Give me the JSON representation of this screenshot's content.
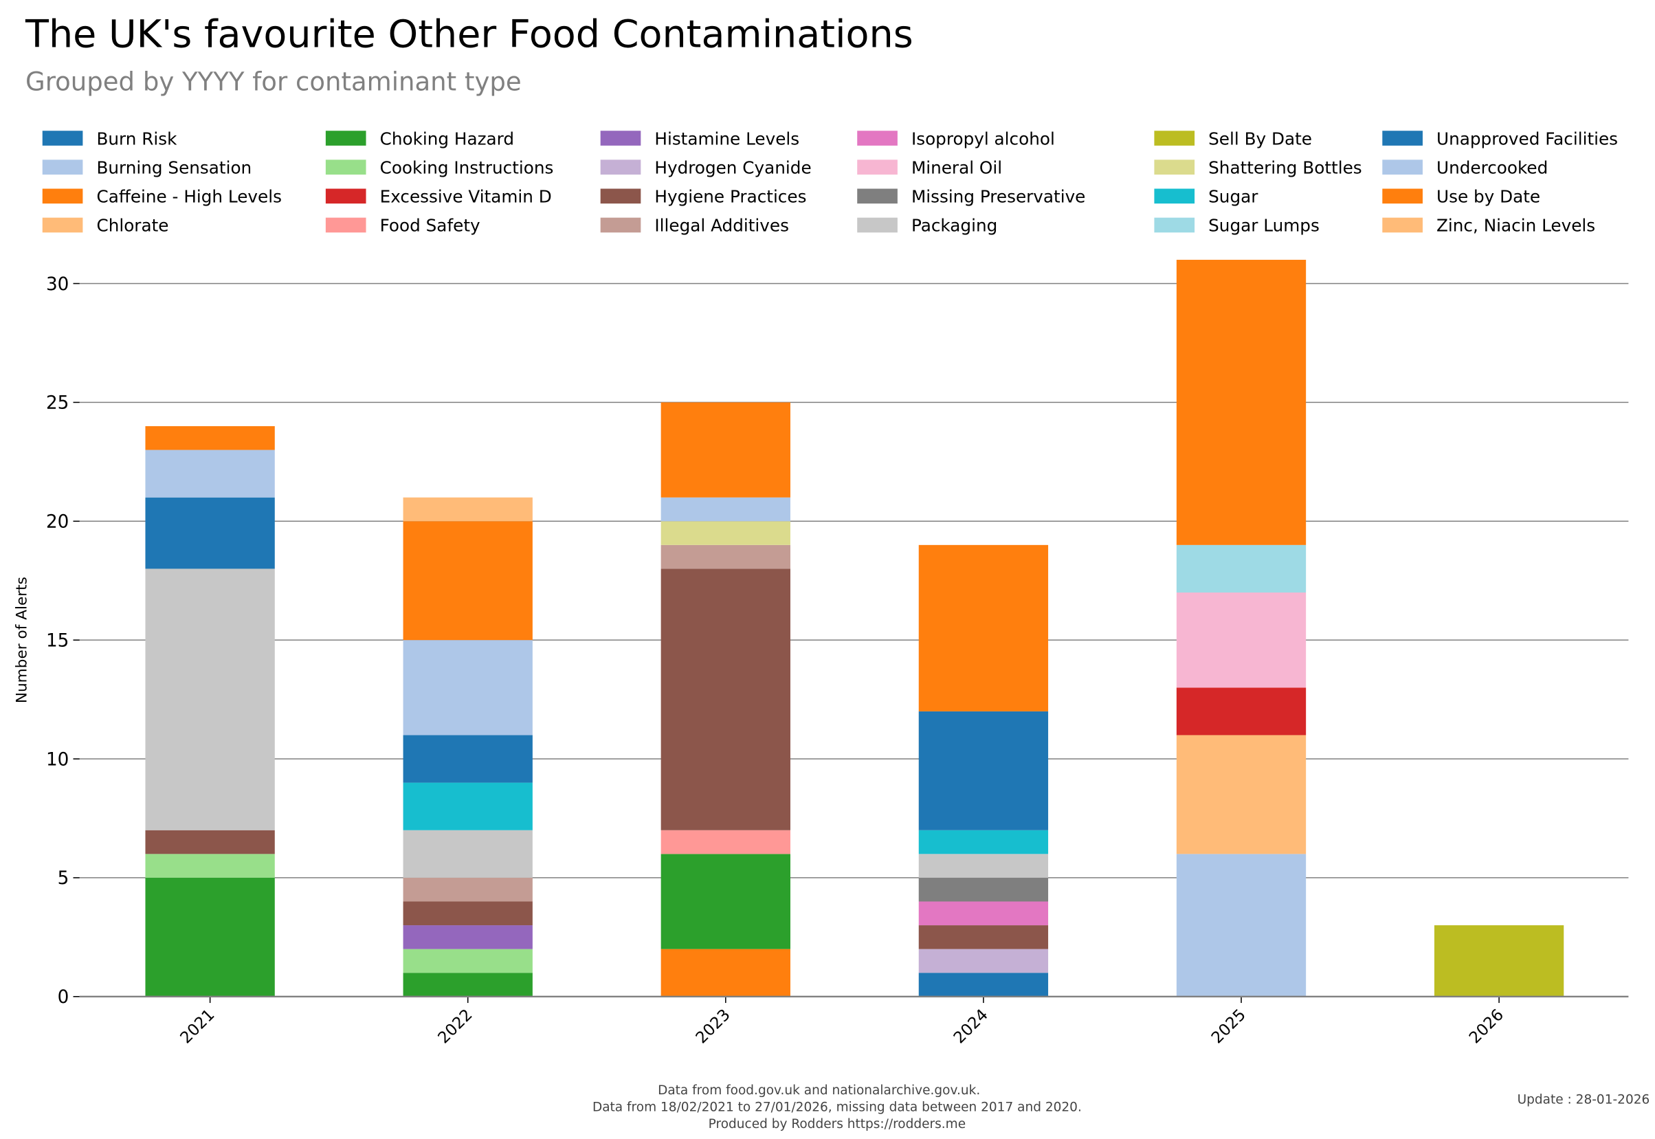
{
  "chart_data": {
    "type": "bar",
    "stacked": true,
    "title": "The UK's favourite Other Food Contaminations",
    "subtitle": "Grouped by YYYY for contaminant type",
    "xlabel": "",
    "ylabel": "Number of Alerts",
    "ylim": [
      0,
      31
    ],
    "yticks": [
      0,
      5,
      10,
      15,
      20,
      25,
      30
    ],
    "grid": "horizontal",
    "legend_position": "top",
    "categories": [
      "2021",
      "2022",
      "2023",
      "2024",
      "2025",
      "2026"
    ],
    "series": [
      {
        "name": "Burn Risk",
        "color": "#1f77b4",
        "values": [
          0,
          0,
          0,
          1,
          0,
          0
        ]
      },
      {
        "name": "Burning Sensation",
        "color": "#aec7e8",
        "values": [
          0,
          0,
          0,
          0,
          6,
          0
        ]
      },
      {
        "name": "Caffeine - High Levels",
        "color": "#ff7f0e",
        "values": [
          0,
          0,
          2,
          0,
          0,
          0
        ]
      },
      {
        "name": "Chlorate",
        "color": "#ffbb78",
        "values": [
          0,
          0,
          0,
          0,
          5,
          0
        ]
      },
      {
        "name": "Choking Hazard",
        "color": "#2ca02c",
        "values": [
          5,
          1,
          4,
          0,
          0,
          0
        ]
      },
      {
        "name": "Cooking Instructions",
        "color": "#98df8a",
        "values": [
          1,
          1,
          0,
          0,
          0,
          0
        ]
      },
      {
        "name": "Excessive Vitamin D",
        "color": "#d62728",
        "values": [
          0,
          0,
          0,
          0,
          2,
          0
        ]
      },
      {
        "name": "Food Safety",
        "color": "#ff9896",
        "values": [
          0,
          0,
          1,
          0,
          0,
          0
        ]
      },
      {
        "name": "Histamine Levels",
        "color": "#9467bd",
        "values": [
          0,
          1,
          0,
          0,
          0,
          0
        ]
      },
      {
        "name": "Hydrogen Cyanide",
        "color": "#c5b0d5",
        "values": [
          0,
          0,
          0,
          1,
          0,
          0
        ]
      },
      {
        "name": "Hygiene Practices",
        "color": "#8c564b",
        "values": [
          1,
          1,
          11,
          1,
          0,
          0
        ]
      },
      {
        "name": "Illegal Additives",
        "color": "#c49c94",
        "values": [
          0,
          1,
          1,
          0,
          0,
          0
        ]
      },
      {
        "name": "Isopropyl alcohol",
        "color": "#e377c2",
        "values": [
          0,
          0,
          0,
          1,
          0,
          0
        ]
      },
      {
        "name": "Mineral Oil",
        "color": "#f7b6d2",
        "values": [
          0,
          0,
          0,
          0,
          4,
          0
        ]
      },
      {
        "name": "Missing Preservative",
        "color": "#7f7f7f",
        "values": [
          0,
          0,
          0,
          1,
          0,
          0
        ]
      },
      {
        "name": "Packaging",
        "color": "#c7c7c7",
        "values": [
          11,
          2,
          0,
          1,
          0,
          0
        ]
      },
      {
        "name": "Sell By Date",
        "color": "#bcbd22",
        "values": [
          0,
          0,
          0,
          0,
          0,
          3
        ]
      },
      {
        "name": "Shattering Bottles",
        "color": "#dbdb8d",
        "values": [
          0,
          0,
          1,
          0,
          0,
          0
        ]
      },
      {
        "name": "Sugar",
        "color": "#17becf",
        "values": [
          0,
          2,
          0,
          1,
          0,
          0
        ]
      },
      {
        "name": "Sugar Lumps",
        "color": "#9edae5",
        "values": [
          0,
          0,
          0,
          0,
          2,
          0
        ]
      },
      {
        "name": "Unapproved Facilities",
        "color": "#1f77b4",
        "values": [
          3,
          2,
          0,
          5,
          0,
          0
        ]
      },
      {
        "name": "Undercooked",
        "color": "#aec7e8",
        "values": [
          2,
          4,
          1,
          0,
          0,
          0
        ]
      },
      {
        "name": "Use by Date",
        "color": "#ff7f0e",
        "values": [
          1,
          5,
          4,
          7,
          12,
          0
        ]
      },
      {
        "name": "Zinc, Niacin Levels",
        "color": "#ffbb78",
        "values": [
          0,
          1,
          0,
          0,
          0,
          0
        ]
      }
    ]
  },
  "footer": {
    "line1": "Data from food.gov.uk and nationalarchive.gov.uk.",
    "line2": "Data from 18/02/2021 to 27/01/2026, missing data between 2017 and 2020.",
    "line3": "Produced by Rodders https://rodders.me",
    "update": "Update : 28-01-2026"
  }
}
